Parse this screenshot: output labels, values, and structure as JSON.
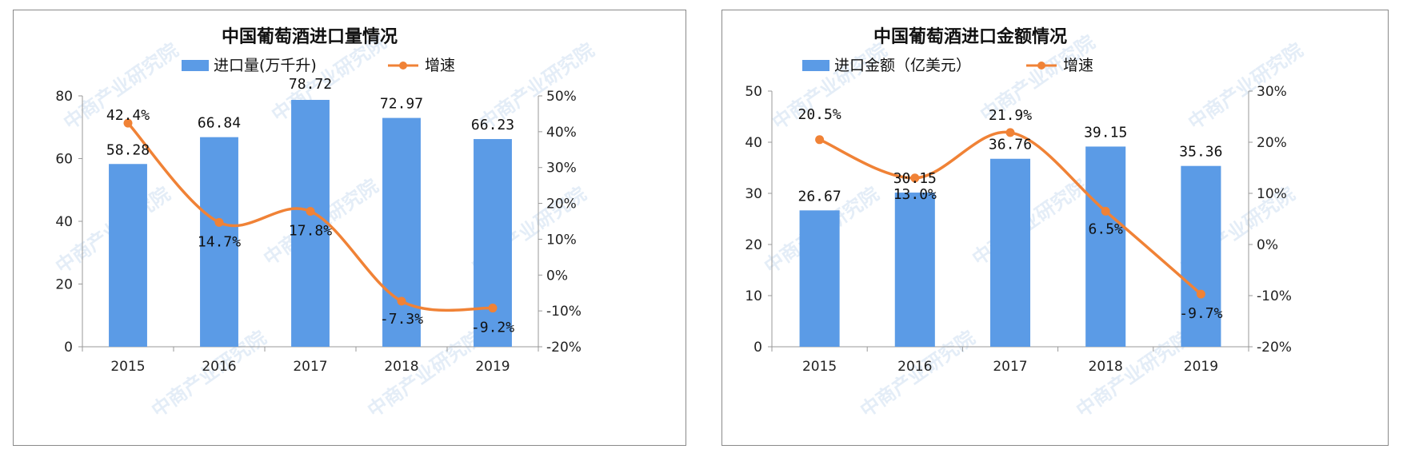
{
  "colors": {
    "bar": "#5b9be6",
    "line": "#f08236",
    "axis": "#999999"
  },
  "watermark": "中商产业研究院",
  "chart_data": [
    {
      "type": "bar",
      "title": "中国葡萄酒进口量情况",
      "categories": [
        "2015",
        "2016",
        "2017",
        "2018",
        "2019"
      ],
      "series": [
        {
          "name": "进口量(万千升)",
          "kind": "bar",
          "axis": "left",
          "values": [
            58.28,
            66.84,
            78.72,
            72.97,
            66.23
          ],
          "labels": [
            "58.28",
            "66.84",
            "78.72",
            "72.97",
            "66.23"
          ]
        },
        {
          "name": "增速",
          "kind": "line",
          "axis": "right",
          "values": [
            42.4,
            14.7,
            17.8,
            -7.3,
            -9.2
          ],
          "labels": [
            "42.4%",
            "14.7%",
            "17.8%",
            "-7.3%",
            "-9.2%"
          ]
        }
      ],
      "ylim_left": [
        0,
        80
      ],
      "yticks_left": [
        "0",
        "20",
        "40",
        "60",
        "80"
      ],
      "ylim_right": [
        -20,
        50
      ],
      "yticks_right": [
        "-20%",
        "-10%",
        "0%",
        "10%",
        "20%",
        "30%",
        "40%",
        "50%"
      ],
      "legend": "top-center"
    },
    {
      "type": "bar",
      "title": "中国葡萄酒进口金额情况",
      "categories": [
        "2015",
        "2016",
        "2017",
        "2018",
        "2019"
      ],
      "series": [
        {
          "name": "进口金额（亿美元）",
          "kind": "bar",
          "axis": "left",
          "values": [
            26.67,
            30.15,
            36.76,
            39.15,
            35.36
          ],
          "labels": [
            "26.67",
            "30.15",
            "36.76",
            "39.15",
            "35.36"
          ]
        },
        {
          "name": "增速",
          "kind": "line",
          "axis": "right",
          "values": [
            20.5,
            13.0,
            21.9,
            6.5,
            -9.7
          ],
          "labels": [
            "20.5%",
            "13.0%",
            "21.9%",
            "6.5%",
            "-9.7%"
          ]
        }
      ],
      "ylim_left": [
        0,
        50
      ],
      "yticks_left": [
        "0",
        "10",
        "20",
        "30",
        "40",
        "50"
      ],
      "ylim_right": [
        -20,
        30
      ],
      "yticks_right": [
        "-20%",
        "-10%",
        "0%",
        "10%",
        "20%",
        "30%"
      ],
      "legend": "top-center"
    }
  ]
}
